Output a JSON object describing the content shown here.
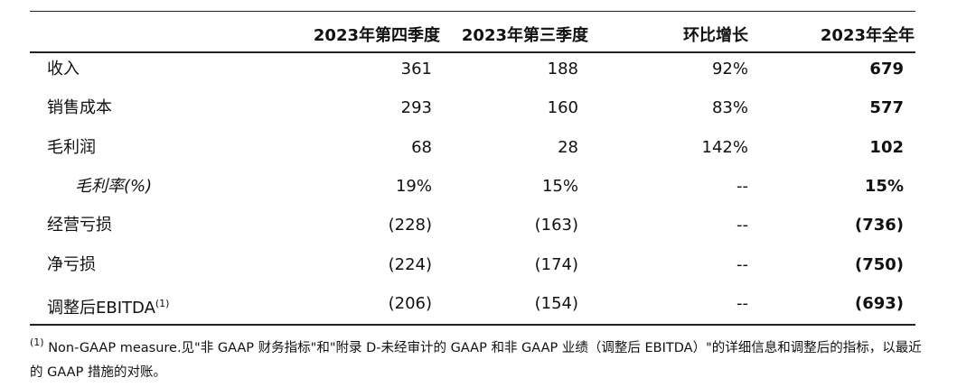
{
  "table": {
    "header": [
      "2023年第四季度",
      "2023年第三季度",
      "环比增长",
      "2023年全年"
    ],
    "rows": [
      {
        "label": "收入",
        "cells": [
          "361",
          "188",
          "92%",
          "679"
        ]
      },
      {
        "label": "销售成本",
        "cells": [
          "293",
          "160",
          "83%",
          "577"
        ]
      },
      {
        "label": "毛利润",
        "cells": [
          "68",
          "28",
          "142%",
          "102"
        ]
      },
      {
        "label": "毛利率(%)",
        "cells": [
          "19%",
          "15%",
          "--",
          "15%"
        ]
      },
      {
        "label": "经营亏损",
        "cells": [
          "(228)",
          "(163)",
          "--",
          "(736)"
        ]
      },
      {
        "label": "净亏损",
        "cells": [
          "(224)",
          "(174)",
          "--",
          "(750)"
        ]
      },
      {
        "label": "调整后EBITDA",
        "note": "(1)",
        "cells": [
          "(206)",
          "(154)",
          "--",
          "(693)"
        ]
      }
    ]
  },
  "footnote": {
    "mark": "(1)",
    "text": "Non-GAAP measure.见\"非 GAAP 财务指标\"和\"附录 D-未经审计的 GAAP 和非 GAAP 业绩（调整后 EBITDA）\"的详细信息和调整后的指标，以最近的 GAAP 措施的对账。"
  }
}
